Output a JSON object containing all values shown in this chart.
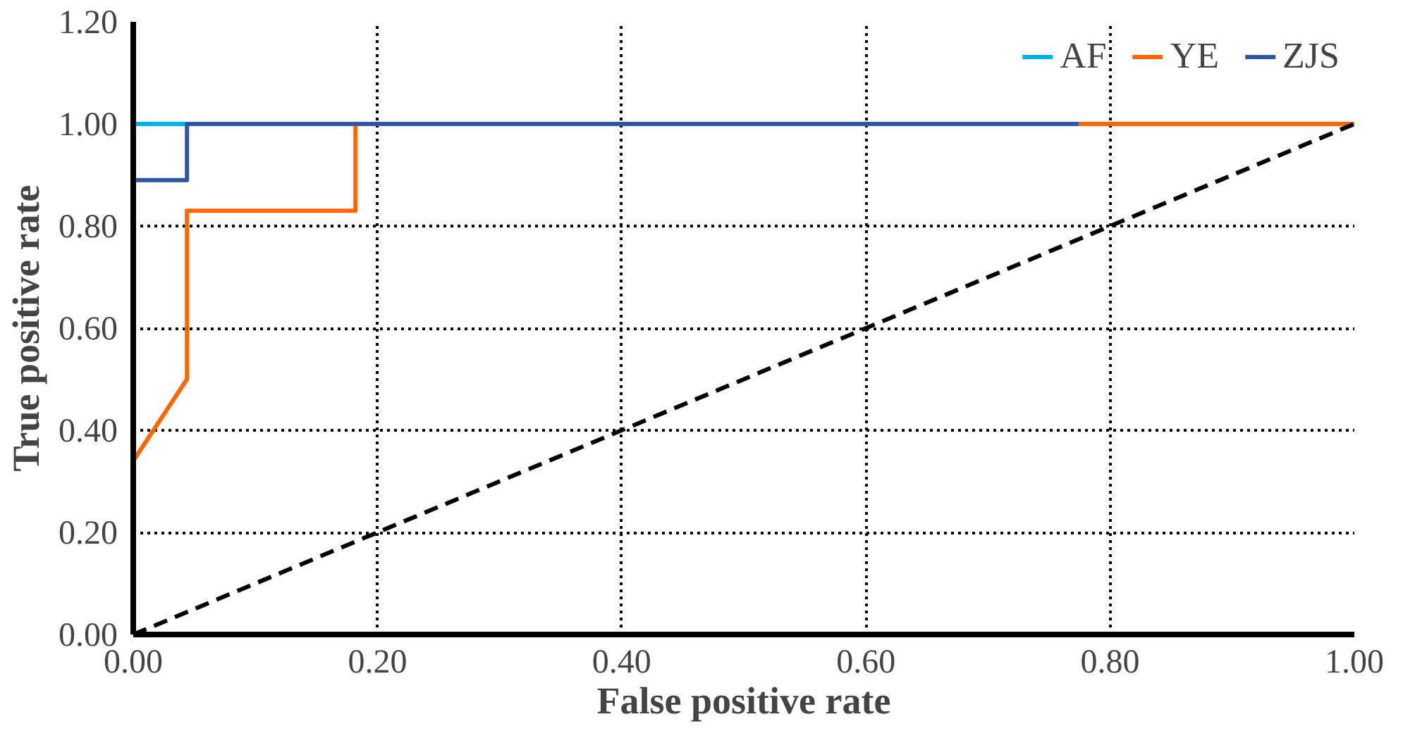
{
  "chart_data": {
    "type": "line",
    "xlabel": "False positive rate",
    "ylabel": "True positive rate",
    "xlim": [
      0,
      1
    ],
    "ylim": [
      0,
      1.2
    ],
    "xticks": [
      {
        "value": 0,
        "label": "0.00"
      },
      {
        "value": 0.2,
        "label": "0.20"
      },
      {
        "value": 0.4,
        "label": "0.40"
      },
      {
        "value": 0.6,
        "label": "0.60"
      },
      {
        "value": 0.8,
        "label": "0.80"
      },
      {
        "value": 1,
        "label": "1.00"
      }
    ],
    "yticks": [
      {
        "value": 0,
        "label": "0.00"
      },
      {
        "value": 0.2,
        "label": "0.20"
      },
      {
        "value": 0.4,
        "label": "0.40"
      },
      {
        "value": 0.6,
        "label": "0.60"
      },
      {
        "value": 0.8,
        "label": "0.80"
      },
      {
        "value": 1,
        "label": "1.00"
      },
      {
        "value": 1.2,
        "label": "1.20"
      }
    ],
    "grid": true,
    "legend": "top right",
    "marker": "none",
    "series": [
      {
        "name": "AF",
        "color": "#00b0f0",
        "x": [
          0,
          0.044
        ],
        "values": [
          1,
          1
        ]
      },
      {
        "name": "YE",
        "color": "#ff6600",
        "x": [
          0,
          0.044,
          0.044,
          0.182,
          0.182,
          1
        ],
        "values": [
          0.34,
          0.5,
          0.83,
          0.83,
          1,
          1
        ]
      },
      {
        "name": "ZJS",
        "color": "#2f55a4",
        "x": [
          0,
          0,
          0.044,
          0.044,
          0.774
        ],
        "values": [
          0,
          0.89,
          0.89,
          1,
          1
        ]
      },
      {
        "color": "#000000",
        "line_style": "dashed",
        "x": [
          0,
          1
        ],
        "values": [
          0,
          1
        ]
      }
    ]
  }
}
